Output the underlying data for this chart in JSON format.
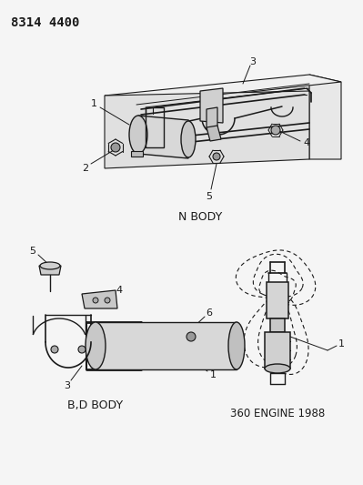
{
  "title": "8314 4400",
  "bg_color": "#f5f5f5",
  "line_color": "#1a1a1a",
  "text_color": "#1a1a1a",
  "section1_label": "N BODY",
  "section2_label": "B,D BODY",
  "section3_label": "360 ENGINE 1988",
  "fig_width": 3.99,
  "fig_height": 5.33,
  "dpi": 100
}
